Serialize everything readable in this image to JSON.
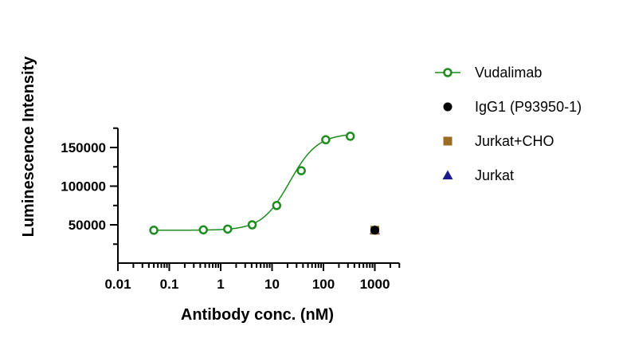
{
  "chart_data": {
    "type": "scatter",
    "title": "",
    "xlabel": "Antibody conc. (nM)",
    "ylabel": "Luminescence Intensity",
    "x_scale": "log",
    "xlim": [
      0.01,
      3000
    ],
    "ylim": [
      25000,
      175000
    ],
    "x_ticks": [
      "0.01",
      "0.1",
      "1",
      "10",
      "100",
      "1000"
    ],
    "x_tick_values": [
      0.01,
      0.1,
      1,
      10,
      100,
      1000
    ],
    "y_ticks": [
      "50000",
      "100000",
      "150000"
    ],
    "y_tick_values": [
      50000,
      100000,
      150000
    ],
    "y_minor_step": 25000,
    "grid": false,
    "legend_position": "right",
    "series": [
      {
        "name": "Vudalimab",
        "marker": "open-circle",
        "color": "#1e8c1e",
        "fit_curve": true,
        "fit": {
          "bottom": 43000,
          "top": 168000,
          "ec50": 22,
          "hill": 1.6
        },
        "x": [
          0.05,
          0.46,
          1.37,
          4.1,
          12.3,
          37,
          111,
          333
        ],
        "y": [
          43000,
          43500,
          44500,
          50000,
          75000,
          120000,
          160000,
          164500
        ]
      },
      {
        "name": "IgG1 (P93950-1)",
        "marker": "filled-circle",
        "color": "#000000",
        "x": [
          1000
        ],
        "y": [
          43000
        ]
      },
      {
        "name": "Jurkat+CHO",
        "marker": "filled-square",
        "color": "#9c6b22",
        "x": [
          1000
        ],
        "y": [
          43000
        ]
      },
      {
        "name": "Jurkat",
        "marker": "filled-triangle",
        "color": "#1a1a8c",
        "x": [
          1000
        ],
        "y": [
          43000
        ]
      }
    ]
  }
}
